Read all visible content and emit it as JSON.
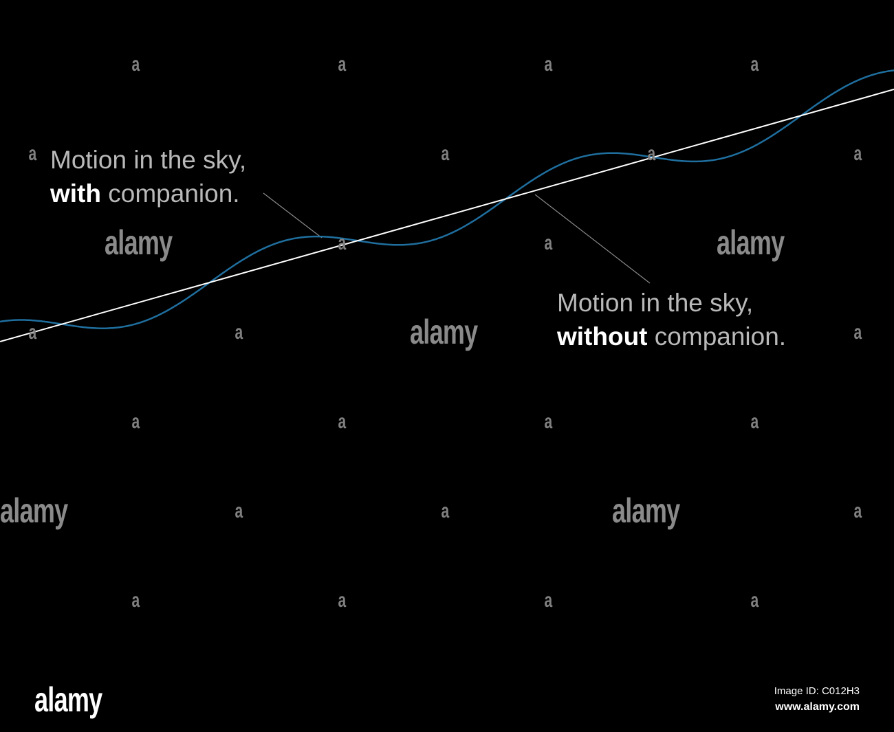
{
  "labels": {
    "with_line1": "Motion in the sky,",
    "with_bold": "with",
    "with_rest": " companion.",
    "without_line1": "Motion in the sky,",
    "without_bold": "without",
    "without_rest": " companion."
  },
  "colors": {
    "background": "#000000",
    "straight_path": "#ffffff",
    "wobbly_path": "#1f6f9f",
    "leader_line": "#8a8a8a",
    "label_text": "#b9b9b9",
    "label_bold": "#ffffff"
  },
  "watermark": {
    "small_mark": "a",
    "large_mark": "alamy"
  },
  "footer": {
    "logo": "alamy",
    "image_id": "Image ID: C012H3",
    "url": "www.alamy.com"
  }
}
